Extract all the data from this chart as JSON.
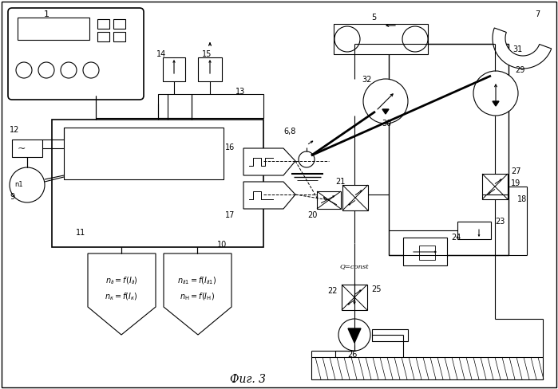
{
  "title": "Фиг. 3",
  "bg_color": "#ffffff",
  "figsize": [
    6.99,
    4.88
  ],
  "dpi": 100
}
